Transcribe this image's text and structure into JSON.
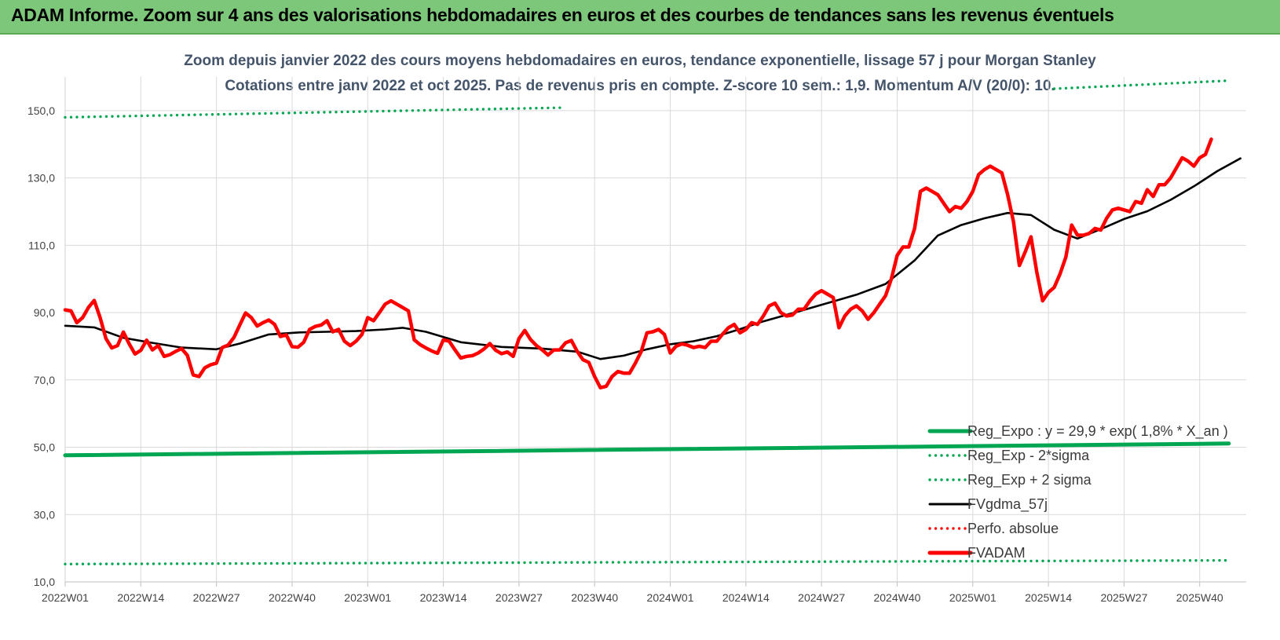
{
  "header": {
    "title": "ADAM Informe. Zoom sur 4 ans des valorisations hebdomadaires en euros et des courbes de tendances sans les revenus éventuels"
  },
  "chart_data": {
    "type": "line",
    "title": "Zoom depuis janvier 2022 des cours moyens hebdomadaires en euros, tendance exponentielle, lissage 57 j pour Morgan Stanley",
    "subtitle": "Cotations entre janv 2022 et oct 2025. Pas de revenus pris en compte. Z-score 10 sem.: 1,9. Momentum A/V (20/0): 10.",
    "xlabel": "",
    "ylabel": "",
    "ylim": [
      10,
      160
    ],
    "yticks": [
      "10,0",
      "30,0",
      "50,0",
      "70,0",
      "90,0",
      "110,0",
      "130,0",
      "150,0"
    ],
    "ytick_values": [
      10,
      30,
      50,
      70,
      90,
      110,
      130,
      150
    ],
    "xticks": [
      "2022W01",
      "2022W14",
      "2022W27",
      "2022W40",
      "2023W01",
      "2023W14",
      "2023W27",
      "2023W40",
      "2024W01",
      "2024W14",
      "2024W27",
      "2024W40",
      "2025W01",
      "2025W14",
      "2025W27",
      "2025W40"
    ],
    "xtick_index": [
      0,
      13,
      26,
      39,
      52,
      65,
      78,
      91,
      104,
      117,
      130,
      143,
      156,
      169,
      182,
      195
    ],
    "n_weeks": 200,
    "grid": "vertical and horizontal",
    "legend_position": "bottom-right",
    "series": [
      {
        "name": "Reg_Expo : y = 29,9 * exp( 1,8% * X_an )",
        "color": "#00a651",
        "style": "solid",
        "points": [
          [
            0,
            47.6
          ],
          [
            200,
            51.1
          ]
        ]
      },
      {
        "name": "Reg_Exp - 2*sigma",
        "color": "#00a651",
        "style": "dotted",
        "points": [
          [
            0,
            15.3
          ],
          [
            200,
            16.4
          ]
        ]
      },
      {
        "name": "Reg_Exp + 2 sigma",
        "color": "#00a651",
        "style": "dotted",
        "points": [
          [
            0,
            148.0
          ],
          [
            86,
            150.9
          ],
          [
            86,
            null
          ],
          [
            170,
            156.5
          ],
          [
            200,
            158.9
          ]
        ]
      },
      {
        "name": "FVgdma_57j",
        "color": "#000000",
        "style": "solid",
        "points": [
          [
            0,
            86.1
          ],
          [
            5,
            85.6
          ],
          [
            10,
            82.5
          ],
          [
            15,
            81.0
          ],
          [
            20,
            79.6
          ],
          [
            26,
            79.1
          ],
          [
            30,
            80.8
          ],
          [
            35,
            83.5
          ],
          [
            40,
            84.1
          ],
          [
            45,
            84.3
          ],
          [
            50,
            84.5
          ],
          [
            55,
            85.0
          ],
          [
            58,
            85.5
          ],
          [
            62,
            84.3
          ],
          [
            68,
            81.2
          ],
          [
            75,
            79.8
          ],
          [
            82,
            79.3
          ],
          [
            88,
            78.4
          ],
          [
            92,
            76.2
          ],
          [
            96,
            77.2
          ],
          [
            100,
            79.1
          ],
          [
            104,
            80.6
          ],
          [
            108,
            81.5
          ],
          [
            112,
            83.0
          ],
          [
            116,
            85.1
          ],
          [
            120,
            87.4
          ],
          [
            126,
            90.3
          ],
          [
            132,
            93.3
          ],
          [
            136,
            95.3
          ],
          [
            141,
            98.5
          ],
          [
            146,
            105.5
          ],
          [
            150,
            112.9
          ],
          [
            154,
            116.0
          ],
          [
            158,
            118.0
          ],
          [
            162,
            119.6
          ],
          [
            166,
            119.0
          ],
          [
            170,
            114.6
          ],
          [
            174,
            112.0
          ],
          [
            178,
            114.8
          ],
          [
            182,
            117.8
          ],
          [
            186,
            120.1
          ],
          [
            190,
            123.5
          ],
          [
            194,
            127.5
          ],
          [
            198,
            132.0
          ],
          [
            202,
            135.8
          ]
        ]
      },
      {
        "name": "Perfo. absolue",
        "color": "#ff0000",
        "style": "dotted",
        "points": []
      },
      {
        "name": "FVADAM",
        "color": "#ff0000",
        "style": "solid",
        "points": [
          [
            0,
            90.8
          ],
          [
            1,
            90.5
          ],
          [
            2,
            87.0
          ],
          [
            3,
            88.5
          ],
          [
            4,
            91.5
          ],
          [
            5,
            93.6
          ],
          [
            6,
            88.5
          ],
          [
            7,
            82.3
          ],
          [
            8,
            79.5
          ],
          [
            9,
            80.2
          ],
          [
            10,
            84.2
          ],
          [
            11,
            80.7
          ],
          [
            12,
            77.7
          ],
          [
            13,
            78.8
          ],
          [
            14,
            81.8
          ],
          [
            15,
            78.9
          ],
          [
            16,
            80.2
          ],
          [
            17,
            77.0
          ],
          [
            18,
            77.5
          ],
          [
            19,
            78.5
          ],
          [
            20,
            79.3
          ],
          [
            21,
            77.3
          ],
          [
            22,
            71.5
          ],
          [
            23,
            71.0
          ],
          [
            24,
            73.6
          ],
          [
            25,
            74.5
          ],
          [
            26,
            75.0
          ],
          [
            27,
            79.6
          ],
          [
            28,
            80.3
          ],
          [
            29,
            82.6
          ],
          [
            30,
            86.3
          ],
          [
            31,
            89.9
          ],
          [
            32,
            88.5
          ],
          [
            33,
            86.0
          ],
          [
            34,
            87.0
          ],
          [
            35,
            87.8
          ],
          [
            36,
            86.5
          ],
          [
            37,
            82.9
          ],
          [
            38,
            83.4
          ],
          [
            39,
            79.9
          ],
          [
            40,
            79.7
          ],
          [
            41,
            81.2
          ],
          [
            42,
            85.0
          ],
          [
            43,
            85.9
          ],
          [
            44,
            86.3
          ],
          [
            45,
            87.6
          ],
          [
            46,
            84.3
          ],
          [
            47,
            85.0
          ],
          [
            48,
            81.5
          ],
          [
            49,
            80.2
          ],
          [
            50,
            81.5
          ],
          [
            51,
            83.5
          ],
          [
            52,
            88.5
          ],
          [
            53,
            87.6
          ],
          [
            54,
            90.0
          ],
          [
            55,
            92.5
          ],
          [
            56,
            93.5
          ],
          [
            57,
            92.5
          ],
          [
            58,
            91.5
          ],
          [
            59,
            90.5
          ],
          [
            60,
            81.9
          ],
          [
            61,
            80.5
          ],
          [
            62,
            79.5
          ],
          [
            63,
            78.6
          ],
          [
            64,
            77.9
          ],
          [
            65,
            81.9
          ],
          [
            66,
            81.5
          ],
          [
            67,
            78.9
          ],
          [
            68,
            76.5
          ],
          [
            69,
            77.0
          ],
          [
            70,
            77.2
          ],
          [
            71,
            78.0
          ],
          [
            72,
            79.2
          ],
          [
            73,
            80.8
          ],
          [
            74,
            78.8
          ],
          [
            75,
            77.8
          ],
          [
            76,
            78.3
          ],
          [
            77,
            77.0
          ],
          [
            78,
            82.3
          ],
          [
            79,
            84.7
          ],
          [
            80,
            82.0
          ],
          [
            81,
            80.2
          ],
          [
            82,
            78.9
          ],
          [
            83,
            77.4
          ],
          [
            84,
            78.9
          ],
          [
            85,
            78.9
          ],
          [
            86,
            81.0
          ],
          [
            87,
            81.7
          ],
          [
            88,
            78.5
          ],
          [
            89,
            76.0
          ],
          [
            90,
            75.2
          ],
          [
            91,
            71.0
          ],
          [
            92,
            67.7
          ],
          [
            93,
            68.1
          ],
          [
            94,
            71.0
          ],
          [
            95,
            72.5
          ],
          [
            96,
            72.0
          ],
          [
            97,
            72.0
          ],
          [
            98,
            75.0
          ],
          [
            99,
            78.4
          ],
          [
            100,
            84.0
          ],
          [
            101,
            84.3
          ],
          [
            102,
            85.0
          ],
          [
            103,
            83.5
          ],
          [
            104,
            78.0
          ],
          [
            105,
            80.0
          ],
          [
            106,
            80.7
          ],
          [
            107,
            80.3
          ],
          [
            108,
            79.6
          ],
          [
            109,
            80.0
          ],
          [
            110,
            79.6
          ],
          [
            111,
            81.5
          ],
          [
            112,
            81.5
          ],
          [
            113,
            83.6
          ],
          [
            114,
            85.5
          ],
          [
            115,
            86.5
          ],
          [
            116,
            84.0
          ],
          [
            117,
            85.0
          ],
          [
            118,
            87.0
          ],
          [
            119,
            86.5
          ],
          [
            120,
            89.0
          ],
          [
            121,
            92.0
          ],
          [
            122,
            92.8
          ],
          [
            123,
            90.0
          ],
          [
            124,
            89.0
          ],
          [
            125,
            89.3
          ],
          [
            126,
            91.0
          ],
          [
            127,
            91.0
          ],
          [
            128,
            93.5
          ],
          [
            129,
            95.5
          ],
          [
            130,
            96.5
          ],
          [
            131,
            95.5
          ],
          [
            132,
            94.5
          ],
          [
            133,
            85.5
          ],
          [
            134,
            89.0
          ],
          [
            135,
            91.0
          ],
          [
            136,
            92.0
          ],
          [
            137,
            90.5
          ],
          [
            138,
            88.0
          ],
          [
            139,
            90.0
          ],
          [
            140,
            92.5
          ],
          [
            141,
            95.0
          ],
          [
            142,
            100.0
          ],
          [
            143,
            107.0
          ],
          [
            144,
            109.5
          ],
          [
            145,
            109.5
          ],
          [
            146,
            115.0
          ],
          [
            147,
            126.0
          ],
          [
            148,
            127.0
          ],
          [
            149,
            126.0
          ],
          [
            150,
            125.0
          ],
          [
            151,
            122.5
          ],
          [
            152,
            120.0
          ],
          [
            153,
            121.5
          ],
          [
            154,
            121.0
          ],
          [
            155,
            123.0
          ],
          [
            156,
            126.0
          ],
          [
            157,
            131.0
          ],
          [
            158,
            132.5
          ],
          [
            159,
            133.5
          ],
          [
            160,
            132.5
          ],
          [
            161,
            131.5
          ],
          [
            162,
            125.0
          ],
          [
            163,
            117.0
          ],
          [
            164,
            104.0
          ],
          [
            165,
            108.0
          ],
          [
            166,
            112.5
          ],
          [
            167,
            102.0
          ],
          [
            168,
            93.5
          ],
          [
            169,
            96.0
          ],
          [
            170,
            97.5
          ],
          [
            171,
            101.5
          ],
          [
            172,
            106.5
          ],
          [
            173,
            116.0
          ],
          [
            174,
            113.0
          ],
          [
            175,
            113.0
          ],
          [
            176,
            113.5
          ],
          [
            177,
            115.0
          ],
          [
            178,
            114.5
          ],
          [
            179,
            118.0
          ],
          [
            180,
            120.5
          ],
          [
            181,
            121.0
          ],
          [
            182,
            120.5
          ],
          [
            183,
            120.0
          ],
          [
            184,
            123.0
          ],
          [
            185,
            122.5
          ],
          [
            186,
            126.5
          ],
          [
            187,
            124.5
          ],
          [
            188,
            128.0
          ],
          [
            189,
            128.0
          ],
          [
            190,
            130.0
          ],
          [
            191,
            133.0
          ],
          [
            192,
            136.0
          ],
          [
            193,
            135.0
          ],
          [
            194,
            133.5
          ],
          [
            195,
            136.0
          ],
          [
            196,
            137.0
          ],
          [
            197,
            141.5
          ]
        ]
      }
    ]
  }
}
